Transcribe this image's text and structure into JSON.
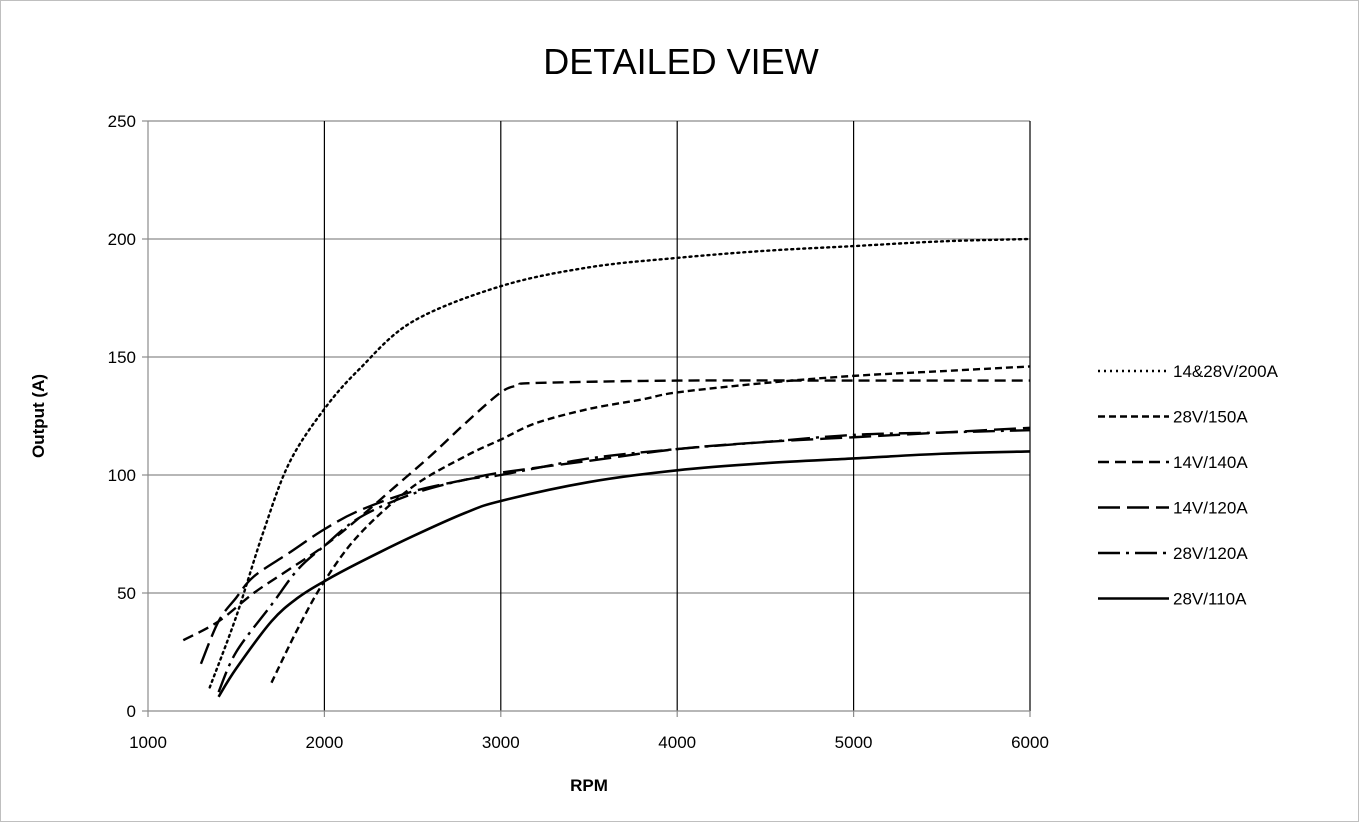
{
  "chart_data": {
    "type": "line",
    "title": "DETAILED VIEW",
    "xlabel": "RPM",
    "ylabel": "Output (A)",
    "xlim": [
      1000,
      6000
    ],
    "ylim": [
      0,
      250
    ],
    "x_ticks": [
      1000,
      2000,
      3000,
      4000,
      5000,
      6000
    ],
    "y_ticks": [
      0,
      50,
      100,
      150,
      200,
      250
    ],
    "grid": {
      "horizontal": true,
      "vertical": true
    },
    "legend_position": "right",
    "series": [
      {
        "name": "14&28V/200A",
        "dash": "dotted",
        "points": [
          [
            1350,
            10
          ],
          [
            1500,
            40
          ],
          [
            1650,
            75
          ],
          [
            1800,
            105
          ],
          [
            2000,
            128
          ],
          [
            2200,
            145
          ],
          [
            2500,
            165
          ],
          [
            3000,
            180
          ],
          [
            3500,
            188
          ],
          [
            4000,
            192
          ],
          [
            4500,
            195
          ],
          [
            5000,
            197
          ],
          [
            5500,
            199
          ],
          [
            6000,
            200
          ]
        ]
      },
      {
        "name": "28V/150A",
        "dash": "short-dash",
        "points": [
          [
            1700,
            12
          ],
          [
            1850,
            35
          ],
          [
            2000,
            55
          ],
          [
            2200,
            75
          ],
          [
            2500,
            95
          ],
          [
            2800,
            108
          ],
          [
            3000,
            115
          ],
          [
            3200,
            122
          ],
          [
            3500,
            128
          ],
          [
            3800,
            132
          ],
          [
            4000,
            135
          ],
          [
            4500,
            139
          ],
          [
            5000,
            142
          ],
          [
            5500,
            144
          ],
          [
            6000,
            146
          ]
        ]
      },
      {
        "name": "14V/140A",
        "dash": "medium-dash",
        "points": [
          [
            1200,
            30
          ],
          [
            1400,
            38
          ],
          [
            1600,
            50
          ],
          [
            1800,
            60
          ],
          [
            2000,
            70
          ],
          [
            2200,
            82
          ],
          [
            2400,
            95
          ],
          [
            2600,
            108
          ],
          [
            2800,
            122
          ],
          [
            3000,
            135
          ],
          [
            3100,
            138
          ],
          [
            3200,
            139
          ],
          [
            4000,
            140
          ],
          [
            5000,
            140
          ],
          [
            6000,
            140
          ]
        ]
      },
      {
        "name": "14V/120A",
        "dash": "long-dash",
        "points": [
          [
            1300,
            20
          ],
          [
            1400,
            38
          ],
          [
            1500,
            48
          ],
          [
            1600,
            57
          ],
          [
            1800,
            67
          ],
          [
            2000,
            77
          ],
          [
            2200,
            85
          ],
          [
            2500,
            93
          ],
          [
            2800,
            98
          ],
          [
            3000,
            101
          ],
          [
            3500,
            106
          ],
          [
            4000,
            111
          ],
          [
            4500,
            114
          ],
          [
            5000,
            116
          ],
          [
            5500,
            118
          ],
          [
            6000,
            120
          ]
        ]
      },
      {
        "name": "28V/120A",
        "dash": "dash-dot",
        "points": [
          [
            1400,
            8
          ],
          [
            1500,
            25
          ],
          [
            1700,
            45
          ],
          [
            1850,
            60
          ],
          [
            2000,
            70
          ],
          [
            2200,
            82
          ],
          [
            2500,
            92
          ],
          [
            2800,
            98
          ],
          [
            3000,
            100
          ],
          [
            3500,
            107
          ],
          [
            4000,
            111
          ],
          [
            4500,
            114
          ],
          [
            5000,
            117
          ],
          [
            5500,
            118
          ],
          [
            6000,
            119
          ]
        ]
      },
      {
        "name": "28V/110A",
        "dash": "solid",
        "points": [
          [
            1400,
            6
          ],
          [
            1500,
            18
          ],
          [
            1700,
            38
          ],
          [
            1850,
            48
          ],
          [
            2000,
            55
          ],
          [
            2200,
            63
          ],
          [
            2500,
            74
          ],
          [
            2800,
            84
          ],
          [
            3000,
            89
          ],
          [
            3500,
            97
          ],
          [
            4000,
            102
          ],
          [
            4500,
            105
          ],
          [
            5000,
            107
          ],
          [
            5500,
            109
          ],
          [
            6000,
            110
          ]
        ]
      }
    ]
  }
}
